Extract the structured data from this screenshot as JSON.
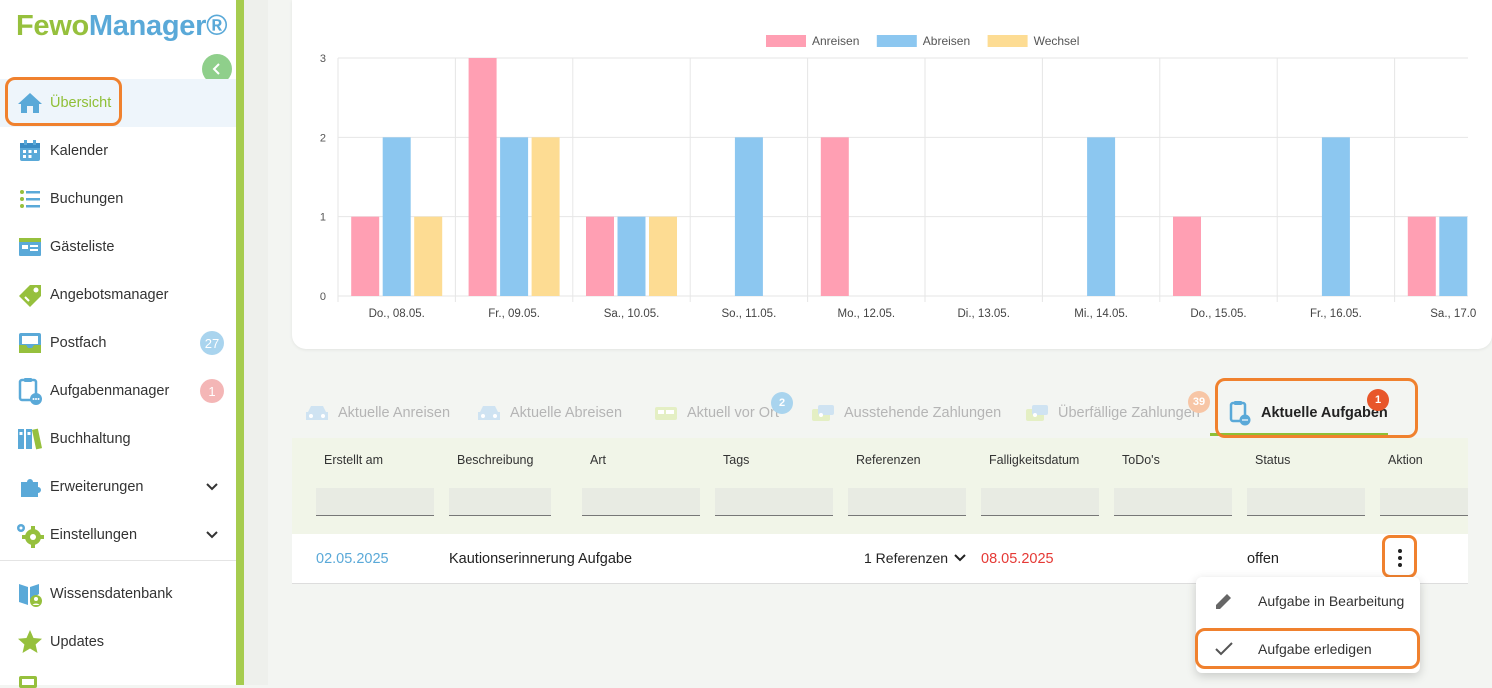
{
  "brand": {
    "part1": "Fewo",
    "part2": "Manager®",
    "color_green": "#96c03d",
    "color_blue": "#5aa9d8"
  },
  "sidebar": {
    "items": [
      {
        "label": "Übersicht",
        "icon": "home-icon",
        "active": true
      },
      {
        "label": "Kalender",
        "icon": "calendar-icon"
      },
      {
        "label": "Buchungen",
        "icon": "list-icon"
      },
      {
        "label": "Gästeliste",
        "icon": "guestlist-icon"
      },
      {
        "label": "Angebotsmanager",
        "icon": "tag-icon"
      },
      {
        "label": "Postfach",
        "icon": "inbox-icon",
        "badge": "27"
      },
      {
        "label": "Aufgabenmanager",
        "icon": "clipboard-icon",
        "badge": "1"
      },
      {
        "label": "Buchhaltung",
        "icon": "binders-icon"
      },
      {
        "label": "Erweiterungen",
        "icon": "puzzle-icon",
        "expandable": true
      },
      {
        "label": "Einstellungen",
        "icon": "gear-icon",
        "expandable": true
      },
      {
        "label": "Wissensdatenbank",
        "icon": "book-icon"
      },
      {
        "label": "Updates",
        "icon": "star-icon"
      }
    ]
  },
  "chart_data": {
    "type": "bar",
    "categories": [
      "Do., 08.05.",
      "Fr., 09.05.",
      "Sa., 10.05.",
      "So., 11.05.",
      "Mo., 12.05.",
      "Di., 13.05.",
      "Mi., 14.05.",
      "Do., 15.05.",
      "Fr., 16.05.",
      "Sa., 17.0"
    ],
    "series": [
      {
        "name": "Anreisen",
        "color": "#ff9fb3",
        "values": [
          1,
          3,
          1,
          0,
          2,
          0,
          0,
          1,
          0,
          1
        ]
      },
      {
        "name": "Abreisen",
        "color": "#8cc7f0",
        "values": [
          2,
          2,
          1,
          2,
          0,
          0,
          2,
          0,
          2,
          1
        ]
      },
      {
        "name": "Wechsel",
        "color": "#fddc93",
        "values": [
          1,
          2,
          1,
          0,
          0,
          0,
          0,
          0,
          0,
          0
        ]
      }
    ],
    "ylim": [
      0,
      3
    ],
    "yticks": [
      "0",
      "1",
      "2",
      "3"
    ],
    "legend": "top-center",
    "grid": true
  },
  "tabs": [
    {
      "label": "Aktuelle Anreisen",
      "icon": "car-icon"
    },
    {
      "label": "Aktuelle Abreisen",
      "icon": "car-icon"
    },
    {
      "label": "Aktuell vor Ort",
      "icon": "bed-icon",
      "badge": "2"
    },
    {
      "label": "Ausstehende Zahlungen",
      "icon": "money-icon"
    },
    {
      "label": "Überfällige Zahlungen",
      "icon": "money-icon",
      "badge": "39"
    },
    {
      "label": "Aktuelle Aufgaben",
      "icon": "clipboard-icon",
      "badge": "1",
      "active": true
    }
  ],
  "table": {
    "columns": [
      "Erstellt am",
      "Beschreibung",
      "Art",
      "Tags",
      "Referenzen",
      "Falligkeitsdatum",
      "ToDo's",
      "Status",
      "Aktion"
    ],
    "row": {
      "created": "02.05.2025",
      "description": "Kautionserinnerung Aufgabe",
      "references": "1 Referenzen",
      "due": "08.05.2025",
      "status": "offen"
    }
  },
  "menu": {
    "items": [
      {
        "label": "Aufgabe in Bearbeitung",
        "icon": "pencil-icon"
      },
      {
        "label": "Aufgabe erledigen",
        "icon": "check-icon"
      }
    ]
  },
  "colors": {
    "accent": "#8fbf36",
    "highlight": "#f0812e",
    "link": "#5aa9d8",
    "due": "#e53935"
  }
}
